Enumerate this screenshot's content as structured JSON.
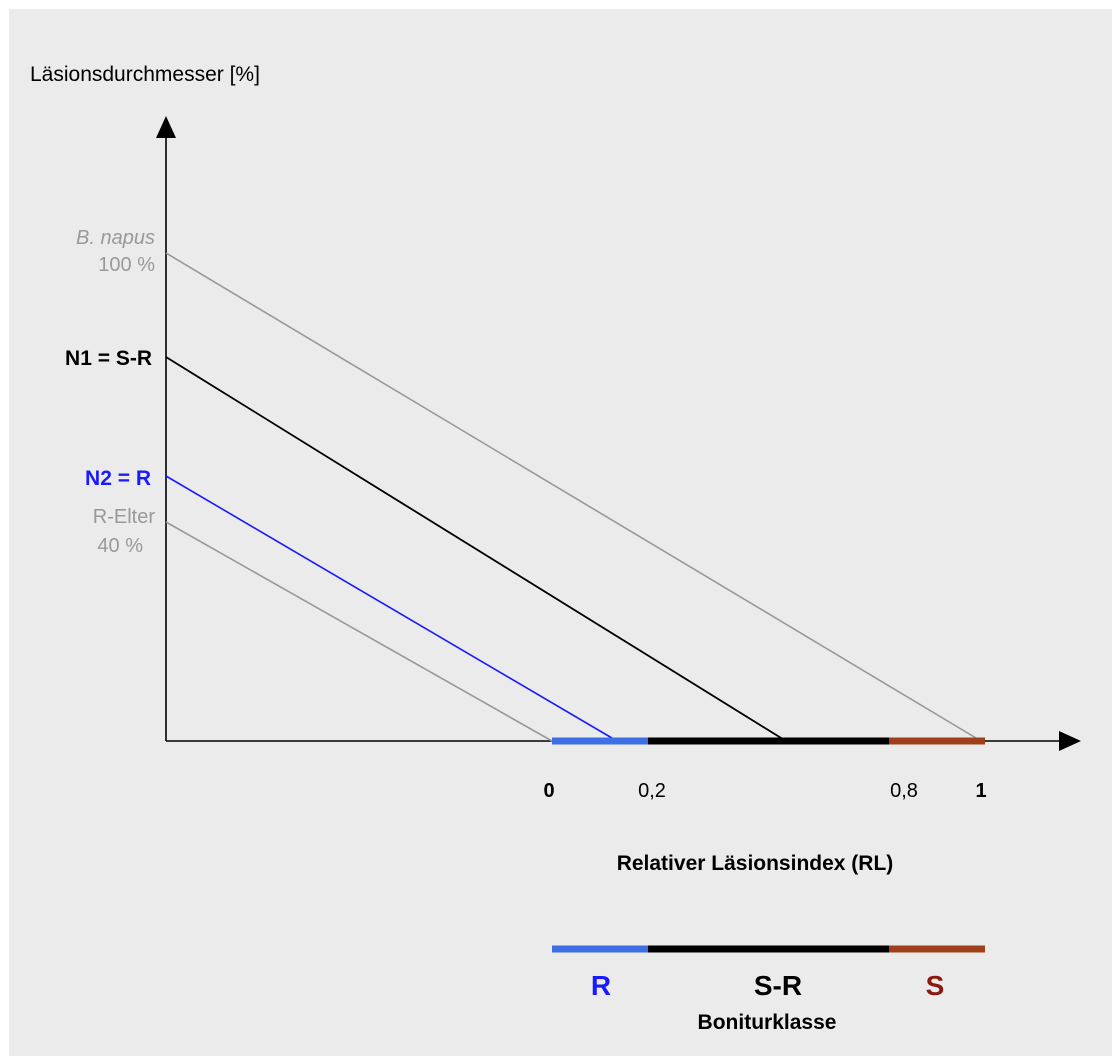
{
  "diagram": {
    "y_axis_title": "Läsionsdurchmesser [%]",
    "x_axis_title": "Relativer Läsionsindex (RL)",
    "ticks": {
      "t0": "0",
      "t02": "0,2",
      "t08": "0,8",
      "t1": "1"
    },
    "lines": {
      "bnapus": {
        "name": "B. napus",
        "value": "100 %",
        "color": "#999999"
      },
      "n1": {
        "name": "N1 = S-R",
        "color": "#000000"
      },
      "n2": {
        "name": "N2 = R",
        "color": "#1a1aff"
      },
      "relter": {
        "name": "R-Elter",
        "value": "40 %",
        "color": "#999999"
      }
    },
    "classes": {
      "title": "Boniturklasse",
      "r": {
        "label": "R",
        "color": "#3f6fe6",
        "text_color": "#1a1aff"
      },
      "sr": {
        "label": "S-R",
        "color": "#000000",
        "text_color": "#000000"
      },
      "s": {
        "label": "S",
        "color": "#a0401a",
        "text_color": "#8b1a0e"
      }
    },
    "colors": {
      "background": "#ebebeb",
      "axis": "#000000"
    }
  }
}
